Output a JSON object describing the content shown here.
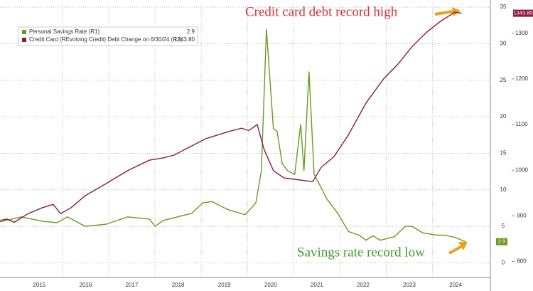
{
  "chart_data": {
    "type": "line",
    "annotations": [
      "Credit card debt record high",
      "Savings rate record low"
    ],
    "xlim": [
      2014.65,
      2025.25
    ],
    "xticks": [
      {
        "value": 2015.5,
        "label": "2015"
      },
      {
        "value": 2016.5,
        "label": "2016"
      },
      {
        "value": 2017.5,
        "label": "2017"
      },
      {
        "value": 2018.5,
        "label": "2018"
      },
      {
        "value": 2019.5,
        "label": "2019"
      },
      {
        "value": 2020.5,
        "label": "2020"
      },
      {
        "value": 2021.5,
        "label": "2021"
      },
      {
        "value": 2022.5,
        "label": "2022"
      },
      {
        "value": 2023.5,
        "label": "2023"
      },
      {
        "value": 2024.5,
        "label": "2024"
      }
    ],
    "ylim": [
      -2,
      35.5
    ],
    "yticks": [
      0,
      5,
      10,
      15,
      20,
      25,
      30,
      35
    ],
    "y2lim": [
      765,
      1365
    ],
    "y2ticks": [
      800,
      900,
      1000,
      1100,
      1200,
      1300
    ],
    "grid": true,
    "series": [
      {
        "name": "Personal Savings Rate (R1)",
        "color": "#6a9a1f",
        "axis": "y",
        "x": [
          2014.65,
          2015.11,
          2015.57,
          2015.88,
          2016.11,
          2016.49,
          2016.95,
          2017.41,
          2017.88,
          2018.0,
          2018.18,
          2018.8,
          2019.03,
          2019.23,
          2019.57,
          2019.95,
          2020.18,
          2020.3,
          2020.41,
          2020.56,
          2020.64,
          2020.75,
          2020.87,
          2021.02,
          2021.15,
          2021.22,
          2021.33,
          2021.44,
          2021.56,
          2021.72,
          2021.95,
          2022.18,
          2022.41,
          2022.56,
          2022.71,
          2022.87,
          2023.18,
          2023.41,
          2023.56,
          2023.79,
          2024.1,
          2024.25,
          2024.48,
          2024.71
        ],
        "values": [
          5.6,
          6.3,
          5.7,
          5.5,
          6.3,
          5.0,
          5.3,
          6.3,
          6.0,
          5.0,
          5.8,
          6.8,
          8.2,
          8.4,
          7.3,
          6.6,
          8.2,
          12.6,
          32,
          18.4,
          18,
          13.6,
          12.6,
          12.1,
          19,
          12.6,
          26.2,
          12.1,
          10.7,
          8.7,
          6.8,
          4.3,
          3.8,
          3.1,
          3.7,
          3.1,
          3.6,
          5.0,
          5.0,
          4.1,
          3.8,
          3.8,
          3.5,
          2.9
        ]
      },
      {
        "name": "Credit Card (REvolving Credit) Debt Change on 6/30/24 (R2)",
        "color": "#8b1a3a",
        "axis": "y2",
        "last_value_label": "1343.80",
        "x": [
          2014.65,
          2014.8,
          2014.96,
          2015.26,
          2015.57,
          2015.8,
          2015.96,
          2016.19,
          2016.49,
          2016.95,
          2017.41,
          2017.88,
          2018.18,
          2018.41,
          2018.64,
          2019.1,
          2019.57,
          2019.87,
          2020.03,
          2020.21,
          2020.36,
          2020.56,
          2020.79,
          2021.02,
          2021.41,
          2021.59,
          2021.87,
          2022.18,
          2022.56,
          2022.95,
          2023.25,
          2023.56,
          2023.87,
          2024.17,
          2024.48,
          2024.63
        ],
        "values": [
          890,
          893,
          886,
          905,
          918,
          925,
          905,
          918,
          944,
          971,
          999,
          1022,
          1027,
          1033,
          1045,
          1069,
          1084,
          1092,
          1087,
          1100,
          1045,
          999,
          983,
          980,
          975,
          1006,
          1030,
          1077,
          1147,
          1201,
          1232,
          1271,
          1302,
          1326,
          1346,
          1343.8
        ]
      }
    ]
  }
}
